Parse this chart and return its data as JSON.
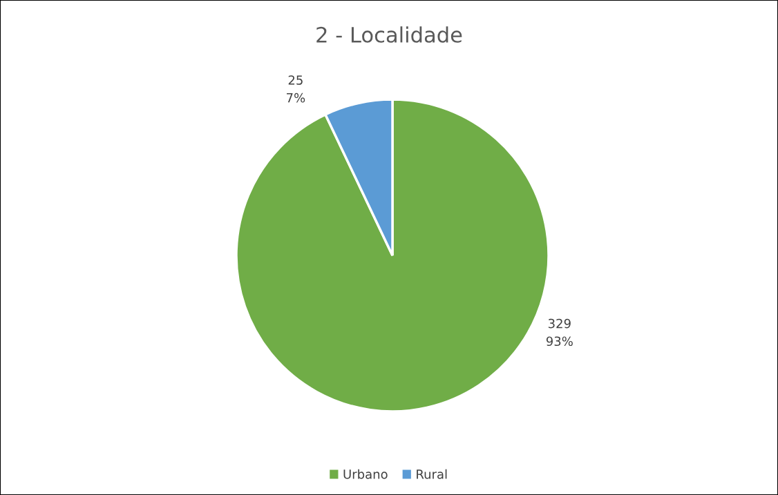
{
  "chart_data": {
    "type": "pie",
    "title": "2 - Localidade",
    "categories": [
      "Urbano",
      "Rural"
    ],
    "values": [
      329,
      25
    ],
    "colors": [
      "#70ad47",
      "#5b9bd5"
    ],
    "value_labels": [
      "329\n93%",
      "25\n7%"
    ],
    "legend": "bottom"
  }
}
